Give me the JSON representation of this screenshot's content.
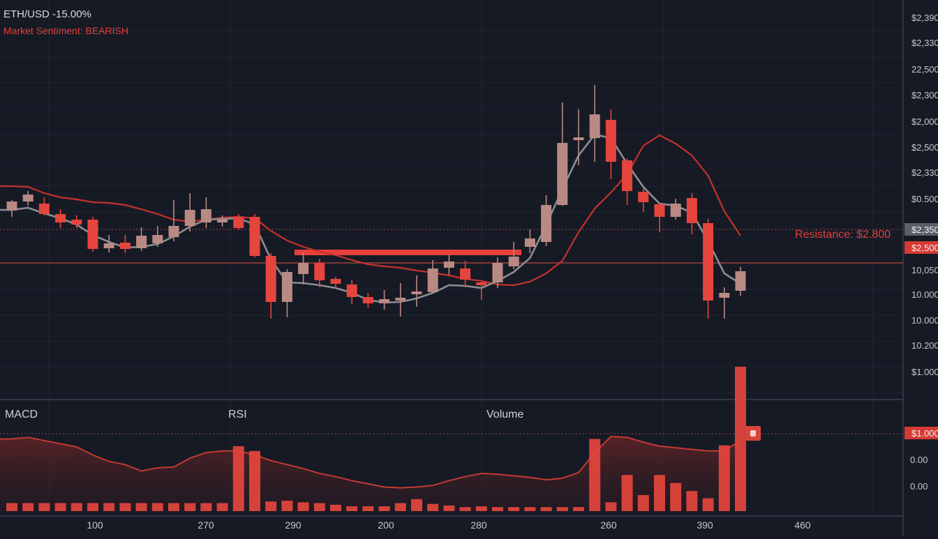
{
  "header": {
    "ticker": "ETH/USD -15.00%",
    "sentiment": "Market Sentiment: BEARISH"
  },
  "colors": {
    "background": "#161a25",
    "bear": "#e5453d",
    "bull": "#b98a83",
    "ma_fast": "#8d8d94",
    "ma_slow": "#c5322b",
    "text": "#d0d0d6"
  },
  "panels": {
    "macd_label": "MACD",
    "rsi_label": "RSI",
    "volume_label": "Volume"
  },
  "chart_data": {
    "type": "candlestick",
    "price_axis_labels": [
      "$2,390",
      "$2,330",
      "22,500",
      "$2,300",
      "$2,000",
      "$2,500",
      "$2,330",
      "$0.500",
      "$2,350",
      "$2,500",
      "10,050",
      "10.000",
      "10.000",
      "10.200",
      "$1.000"
    ],
    "highlighted_price_labels": [
      "$2,350",
      "$2,500"
    ],
    "volume_axis_labels": [
      "$1.000",
      "0.00",
      "0.00"
    ],
    "x_axis_labels": [
      "100",
      "270",
      "290",
      "200",
      "280",
      "260",
      "390",
      "460"
    ],
    "annotation": "Resistance: $2.800",
    "candles": [
      {
        "o": 5.5,
        "c": 6.8,
        "h": 7.0,
        "l": 4.6
      },
      {
        "o": 6.8,
        "c": 7.8,
        "h": 8.3,
        "l": 6.2
      },
      {
        "o": 6.5,
        "c": 5.0,
        "h": 7.4,
        "l": 4.8
      },
      {
        "o": 5.0,
        "c": 3.8,
        "h": 5.7,
        "l": 3.0
      },
      {
        "o": 4.2,
        "c": 3.5,
        "h": 4.8,
        "l": 3.0
      },
      {
        "o": 4.2,
        "c": 0.0,
        "h": 4.6,
        "l": -0.4
      },
      {
        "o": 0.1,
        "c": 0.8,
        "h": 2.0,
        "l": -0.5
      },
      {
        "o": 0.9,
        "c": 0.0,
        "h": 2.0,
        "l": -0.6
      },
      {
        "o": 0.1,
        "c": 1.9,
        "h": 3.1,
        "l": -0.3
      },
      {
        "o": 0.8,
        "c": 2.0,
        "h": 3.3,
        "l": 0.3
      },
      {
        "o": 1.7,
        "c": 3.3,
        "h": 7.0,
        "l": 1.1
      },
      {
        "o": 3.3,
        "c": 5.6,
        "h": 8.0,
        "l": 2.5
      },
      {
        "o": 3.8,
        "c": 5.7,
        "h": 7.4,
        "l": 3.0
      },
      {
        "o": 4.0,
        "c": 4.2,
        "h": 4.8,
        "l": 3.2
      },
      {
        "o": 4.6,
        "c": 3.0,
        "h": 5.0,
        "l": 2.7
      },
      {
        "o": 4.6,
        "c": -1.0,
        "h": 5.0,
        "l": -1.2
      },
      {
        "o": -1.0,
        "c": -7.6,
        "h": -0.6,
        "l": -10.0
      },
      {
        "o": -7.6,
        "c": -3.3,
        "h": -2.9,
        "l": -9.8
      },
      {
        "o": -3.6,
        "c": -2.0,
        "h": -0.5,
        "l": -5.1
      },
      {
        "o": -2.0,
        "c": -4.5,
        "h": -1.4,
        "l": -5.5
      },
      {
        "o": -4.3,
        "c": -5.0,
        "h": -4.0,
        "l": -5.7
      },
      {
        "o": -5.1,
        "c": -6.9,
        "h": -4.4,
        "l": -7.9
      },
      {
        "o": -6.9,
        "c": -7.8,
        "h": -6.3,
        "l": -8.4
      },
      {
        "o": -7.8,
        "c": -7.2,
        "h": -5.9,
        "l": -8.7
      },
      {
        "o": -7.3,
        "c": -7.0,
        "h": -4.9,
        "l": -9.7
      },
      {
        "o": -6.2,
        "c": -6.1,
        "h": -3.8,
        "l": -8.3
      },
      {
        "o": -6.2,
        "c": -2.8,
        "h": -1.6,
        "l": -6.3
      },
      {
        "o": -2.7,
        "c": -1.8,
        "h": -0.8,
        "l": -3.7
      },
      {
        "o": -2.8,
        "c": -4.4,
        "h": -1.7,
        "l": -5.5
      },
      {
        "o": -4.8,
        "c": -5.1,
        "h": -4.7,
        "l": -7.3
      },
      {
        "o": -4.8,
        "c": -2.0,
        "h": -1.2,
        "l": -5.6
      },
      {
        "o": -2.5,
        "c": -1.1,
        "h": 1.0,
        "l": -2.9
      },
      {
        "o": 0.3,
        "c": 1.5,
        "h": 2.8,
        "l": -0.6
      },
      {
        "o": 1.0,
        "c": 6.3,
        "h": 7.7,
        "l": 0.4
      },
      {
        "o": 6.3,
        "c": 15.2,
        "h": 21.0,
        "l": 6.2
      },
      {
        "o": 15.6,
        "c": 16.0,
        "h": 20.0,
        "l": 12.0
      },
      {
        "o": 15.9,
        "c": 19.3,
        "h": 23.5,
        "l": 12.5
      },
      {
        "o": 18.5,
        "c": 12.5,
        "h": 20.0,
        "l": 10.0
      },
      {
        "o": 12.7,
        "c": 8.3,
        "h": 13.0,
        "l": 6.3
      },
      {
        "o": 8.2,
        "c": 6.7,
        "h": 8.7,
        "l": 5.3
      },
      {
        "o": 6.4,
        "c": 4.6,
        "h": 6.6,
        "l": 2.4
      },
      {
        "o": 4.6,
        "c": 6.5,
        "h": 7.2,
        "l": 4.2
      },
      {
        "o": 7.3,
        "c": 3.7,
        "h": 8.0,
        "l": 2.1
      },
      {
        "o": 3.7,
        "c": -7.4,
        "h": 4.3,
        "l": -10.0
      },
      {
        "o": -7.0,
        "c": -6.3,
        "h": -5.5,
        "l": -10.0
      },
      {
        "o": -6.0,
        "c": -3.2,
        "h": -2.6,
        "l": -6.7
      }
    ],
    "ma_fast": [
      5.6,
      5.9,
      5.1,
      4.4,
      3.5,
      2.0,
      1.0,
      0.2,
      0.3,
      0.7,
      1.8,
      3.2,
      4.2,
      4.3,
      4.4,
      3.5,
      -1.5,
      -4.8,
      -4.9,
      -5.2,
      -5.6,
      -6.3,
      -7.3,
      -7.7,
      -7.6,
      -7.1,
      -6.3,
      -5.2,
      -5.3,
      -5.6,
      -4.6,
      -3.3,
      -1.3,
      3.4,
      8.6,
      13.4,
      16.4,
      15.9,
      12.2,
      8.9,
      6.5,
      6.2,
      5.2,
      1.1,
      -3.5,
      -5.0
    ],
    "ma_slow": [
      9.0,
      8.9,
      8.0,
      7.4,
      7.1,
      6.7,
      6.6,
      6.3,
      5.7,
      5.0,
      4.2,
      3.9,
      4.2,
      4.5,
      4.6,
      4.4,
      2.6,
      1.2,
      0.3,
      -0.4,
      -0.9,
      -1.6,
      -2.2,
      -2.5,
      -2.7,
      -3.1,
      -3.4,
      -3.8,
      -4.3,
      -4.6,
      -5.1,
      -5.2,
      -4.7,
      -3.5,
      -1.7,
      2.4,
      5.8,
      8.1,
      10.7,
      14.8,
      16.3,
      15.1,
      13.4,
      10.5,
      5.4,
      1.9
    ],
    "resistance_value": 0.8,
    "support_zone_value": 0.0,
    "volume": [
      10,
      10,
      10,
      10,
      10,
      10,
      10,
      10,
      10,
      10,
      10,
      10,
      10,
      10,
      81,
      75,
      12,
      13,
      11,
      10,
      8,
      6,
      6,
      6,
      10,
      15,
      9,
      7,
      5,
      6,
      5,
      5,
      5,
      5,
      5,
      5,
      90,
      11,
      45,
      20,
      45,
      35,
      25,
      16,
      82,
      180
    ],
    "volume_envelope": [
      90,
      92,
      88,
      84,
      80,
      70,
      62,
      58,
      50,
      54,
      55,
      66,
      73,
      75,
      75,
      70,
      63,
      58,
      53,
      47,
      43,
      38,
      34,
      30,
      29,
      30,
      32,
      38,
      43,
      47,
      46,
      44,
      42,
      39,
      41,
      48,
      73,
      93,
      92,
      86,
      81,
      79,
      77,
      75,
      75,
      88
    ]
  }
}
